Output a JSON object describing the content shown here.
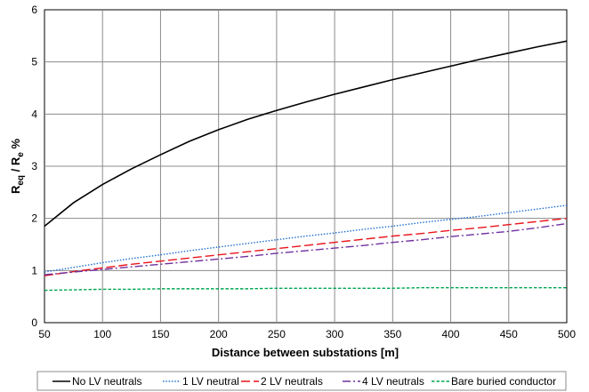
{
  "chart_data": {
    "type": "line",
    "title": "",
    "xlabel": "Distance between substations [m]",
    "ylabel": {
      "parts": [
        {
          "text": "R",
          "sub": false
        },
        {
          "text": "eq",
          "sub": true
        },
        {
          "text": " / R",
          "sub": false
        },
        {
          "text": "e",
          "sub": true
        },
        {
          "text": " %",
          "sub": false
        }
      ]
    },
    "xlim": [
      50,
      500
    ],
    "ylim": [
      0,
      6
    ],
    "xticks": [
      50,
      100,
      150,
      200,
      250,
      300,
      350,
      400,
      450,
      500
    ],
    "yticks": [
      0,
      1,
      2,
      3,
      4,
      5,
      6
    ],
    "grid": true,
    "legend_position": "bottom",
    "x": [
      50,
      75,
      100,
      125,
      150,
      175,
      200,
      225,
      250,
      275,
      300,
      325,
      350,
      375,
      400,
      425,
      450,
      475,
      500
    ],
    "series": [
      {
        "name": "No LV neutrals",
        "color": "#000000",
        "dash": "solid",
        "values": [
          1.85,
          2.3,
          2.65,
          2.95,
          3.22,
          3.48,
          3.7,
          3.9,
          4.07,
          4.23,
          4.38,
          4.52,
          4.66,
          4.79,
          4.92,
          5.05,
          5.17,
          5.29,
          5.4
        ]
      },
      {
        "name": "1 LV neutral",
        "color": "#1f6fd0",
        "dash": "dotted",
        "values": [
          0.97,
          1.06,
          1.15,
          1.23,
          1.3,
          1.38,
          1.45,
          1.52,
          1.59,
          1.66,
          1.72,
          1.79,
          1.85,
          1.92,
          1.98,
          2.04,
          2.11,
          2.18,
          2.25
        ]
      },
      {
        "name": "2 LV neutrals",
        "color": "#e8141b",
        "dash": "dashed",
        "values": [
          0.9,
          0.98,
          1.05,
          1.12,
          1.18,
          1.24,
          1.3,
          1.36,
          1.42,
          1.48,
          1.54,
          1.6,
          1.66,
          1.71,
          1.77,
          1.82,
          1.88,
          1.94,
          2.0
        ]
      },
      {
        "name": "4 LV neutrals",
        "color": "#7030a0",
        "dash": "dashdot",
        "values": [
          0.92,
          0.97,
          1.02,
          1.07,
          1.12,
          1.17,
          1.22,
          1.27,
          1.33,
          1.38,
          1.43,
          1.48,
          1.54,
          1.59,
          1.65,
          1.7,
          1.75,
          1.82,
          1.9
        ]
      },
      {
        "name": "Bare buried conductor",
        "color": "#00a651",
        "dash": "shortdash",
        "values": [
          0.62,
          0.63,
          0.64,
          0.64,
          0.65,
          0.65,
          0.65,
          0.65,
          0.66,
          0.66,
          0.66,
          0.66,
          0.66,
          0.67,
          0.67,
          0.67,
          0.67,
          0.67,
          0.67
        ]
      }
    ]
  }
}
